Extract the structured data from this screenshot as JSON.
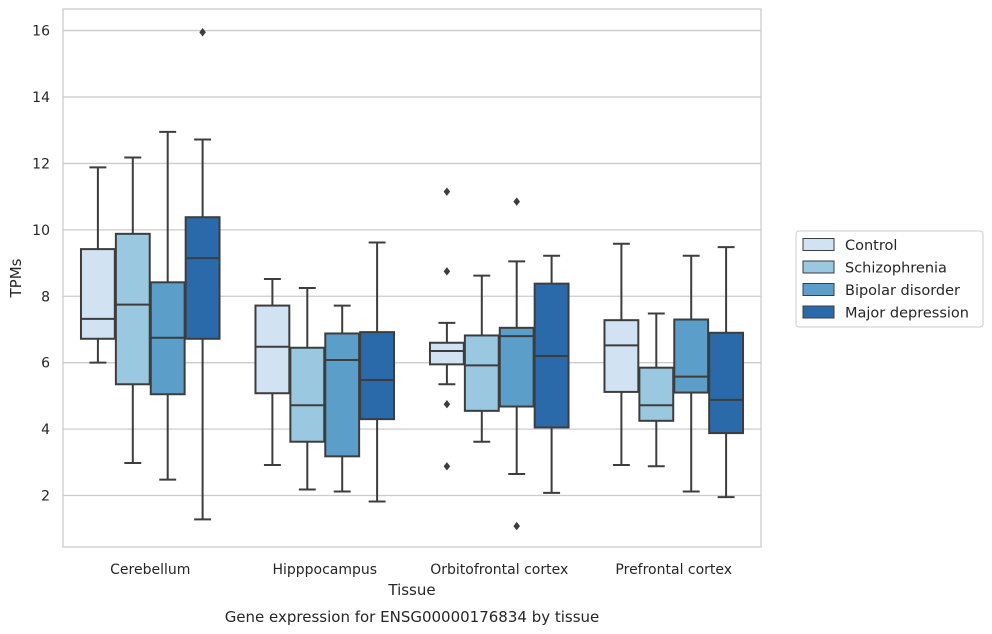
{
  "chart_data": {
    "type": "box",
    "xlabel": "Tissue",
    "ylabel": "TPMs",
    "caption": "Gene expression for ENSG00000176834 by tissue",
    "ylim": [
      0.45,
      16.65
    ],
    "yticks": [
      2,
      4,
      6,
      8,
      10,
      12,
      14,
      16
    ],
    "grid": true,
    "legend_position": "right",
    "categories": [
      "Cerebellum",
      "Hipppocampus",
      "Orbitofrontal cortex",
      "Prefrontal cortex"
    ],
    "series": [
      {
        "name": "Control",
        "color": "#d1e2f2",
        "boxes": [
          {
            "whislo": 6.0,
            "q1": 6.72,
            "med": 7.32,
            "q3": 9.42,
            "whishi": 11.88,
            "fliers": []
          },
          {
            "whislo": 2.92,
            "q1": 5.08,
            "med": 6.48,
            "q3": 7.72,
            "whishi": 8.52,
            "fliers": []
          },
          {
            "whislo": 5.35,
            "q1": 5.95,
            "med": 6.35,
            "q3": 6.6,
            "whishi": 7.2,
            "fliers": [
              11.15,
              8.75,
              4.75,
              2.88
            ]
          },
          {
            "whislo": 2.92,
            "q1": 5.12,
            "med": 6.52,
            "q3": 7.28,
            "whishi": 9.58,
            "fliers": []
          }
        ]
      },
      {
        "name": "Schizophrenia",
        "color": "#9ac8e0",
        "boxes": [
          {
            "whislo": 2.98,
            "q1": 5.35,
            "med": 7.75,
            "q3": 9.88,
            "whishi": 12.18,
            "fliers": []
          },
          {
            "whislo": 2.18,
            "q1": 3.62,
            "med": 4.72,
            "q3": 6.45,
            "whishi": 8.25,
            "fliers": []
          },
          {
            "whislo": 3.62,
            "q1": 4.55,
            "med": 5.92,
            "q3": 6.82,
            "whishi": 8.62,
            "fliers": []
          },
          {
            "whislo": 2.88,
            "q1": 4.25,
            "med": 4.72,
            "q3": 5.85,
            "whishi": 7.48,
            "fliers": []
          }
        ]
      },
      {
        "name": "Bipolar disorder",
        "color": "#5a9ec9",
        "boxes": [
          {
            "whislo": 2.48,
            "q1": 5.05,
            "med": 6.75,
            "q3": 8.42,
            "whishi": 12.95,
            "fliers": []
          },
          {
            "whislo": 2.12,
            "q1": 3.18,
            "med": 6.08,
            "q3": 6.88,
            "whishi": 7.72,
            "fliers": []
          },
          {
            "whislo": 2.65,
            "q1": 4.68,
            "med": 6.8,
            "q3": 7.05,
            "whishi": 9.05,
            "fliers": [
              10.85,
              1.08
            ]
          },
          {
            "whislo": 2.12,
            "q1": 5.1,
            "med": 5.58,
            "q3": 7.3,
            "whishi": 9.22,
            "fliers": []
          }
        ]
      },
      {
        "name": "Major depression",
        "color": "#2a6aaa",
        "boxes": [
          {
            "whislo": 1.28,
            "q1": 6.72,
            "med": 9.15,
            "q3": 10.38,
            "whishi": 12.72,
            "fliers": [
              15.95
            ]
          },
          {
            "whislo": 1.82,
            "q1": 4.3,
            "med": 5.48,
            "q3": 6.92,
            "whishi": 9.62,
            "fliers": []
          },
          {
            "whislo": 2.08,
            "q1": 4.05,
            "med": 6.2,
            "q3": 8.38,
            "whishi": 9.22,
            "fliers": []
          },
          {
            "whislo": 1.95,
            "q1": 3.88,
            "med": 4.88,
            "q3": 6.9,
            "whishi": 9.48,
            "fliers": []
          }
        ]
      }
    ]
  }
}
